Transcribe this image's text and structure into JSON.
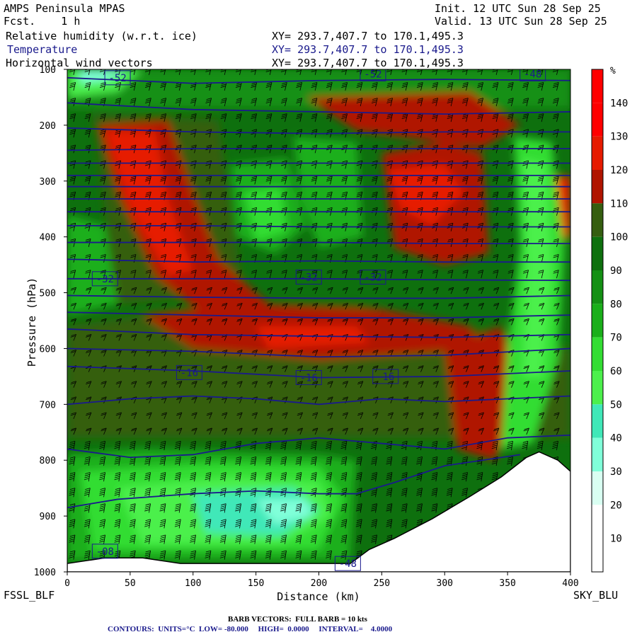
{
  "header": {
    "model": "AMPS Peninsula MPAS",
    "fcst": "Fcst.    1 h",
    "init": "Init. 12 UTC Sun 28 Sep 25",
    "valid": "Valid. 13 UTC Sun 28 Sep 25",
    "fields": [
      {
        "name": "Relative humidity (w.r.t. ice)",
        "xy": "XY= 293.7,407.7 to 170.1,495.3"
      },
      {
        "name": "Temperature",
        "xy": "XY= 293.7,407.7 to 170.1,495.3"
      },
      {
        "name": "Horizontal wind vectors",
        "xy": "XY= 293.7,407.7 to 170.1,495.3"
      }
    ]
  },
  "footer": {
    "left_station": "FSSL_BLF",
    "right_station": "SKY_BLU",
    "barb_note": "BARB VECTORS:  FULL BARB = 10 kts",
    "contour_note": "CONTOURS:  UNITS=°C  LOW= -80.000     HIGH=  0.0000     INTERVAL=    4.0000"
  },
  "colors": {
    "rh_10": "#ffffff",
    "rh_20": "#ffffff",
    "rh_30": "#d9fff2",
    "rh_40": "#80ffd9",
    "rh_50": "#40e8b8",
    "rh_60": "#4cf04c",
    "rh_70": "#33dd33",
    "rh_80": "#1aaf1a",
    "rh_90": "#149014",
    "rh_100": "#0e700e",
    "rh_110": "#355e10",
    "rh_120": "#b01400",
    "rh_130": "#e61a00",
    "rh_140": "#ff0000",
    "temperature_contour": "#1a1a8c",
    "terrain": "#ffffff"
  },
  "chart_data": {
    "type": "cross-section",
    "xlabel": "Distance (km)",
    "ylabel": "Pressure (hPa)",
    "xlim": [
      0,
      400
    ],
    "ylim": [
      1000,
      100
    ],
    "x_ticks": [
      0,
      50,
      100,
      150,
      200,
      250,
      300,
      350,
      400
    ],
    "y_ticks": [
      100,
      200,
      300,
      400,
      500,
      600,
      700,
      800,
      900,
      1000
    ],
    "colorbar": {
      "unit": "%",
      "ticks": [
        10,
        20,
        30,
        40,
        50,
        60,
        70,
        80,
        90,
        100,
        110,
        120,
        130,
        140
      ],
      "color_keys": [
        "rh_10",
        "rh_20",
        "rh_30",
        "rh_40",
        "rh_50",
        "rh_60",
        "rh_70",
        "rh_80",
        "rh_90",
        "rh_100",
        "rh_110",
        "rh_120",
        "rh_130",
        "rh_140"
      ]
    },
    "temperature_labels": [
      {
        "text": "-32",
        "x": 30,
        "p": 475
      },
      {
        "text": "-32",
        "x": 192,
        "p": 472
      },
      {
        "text": "-32",
        "x": 243,
        "p": 472
      },
      {
        "text": "-16",
        "x": 97,
        "p": 643
      },
      {
        "text": "-16",
        "x": 192,
        "p": 652
      },
      {
        "text": "-16",
        "x": 253,
        "p": 650
      },
      {
        "text": "-08",
        "x": 30,
        "p": 963
      },
      {
        "text": "-48",
        "x": 223,
        "p": 985
      },
      {
        "text": "-52",
        "x": 243,
        "p": 108
      },
      {
        "text": "-48",
        "x": 370,
        "p": 108
      },
      {
        "text": "-52",
        "x": 40,
        "p": 115
      }
    ],
    "terrain_profile": [
      {
        "x": 0,
        "p": 985
      },
      {
        "x": 30,
        "p": 975
      },
      {
        "x": 60,
        "p": 975
      },
      {
        "x": 90,
        "p": 985
      },
      {
        "x": 120,
        "p": 985
      },
      {
        "x": 160,
        "p": 985
      },
      {
        "x": 200,
        "p": 985
      },
      {
        "x": 225,
        "p": 985
      },
      {
        "x": 240,
        "p": 960
      },
      {
        "x": 260,
        "p": 940
      },
      {
        "x": 290,
        "p": 905
      },
      {
        "x": 320,
        "p": 865
      },
      {
        "x": 345,
        "p": 830
      },
      {
        "x": 365,
        "p": 795
      },
      {
        "x": 375,
        "p": 785
      },
      {
        "x": 390,
        "p": 800
      },
      {
        "x": 400,
        "p": 820
      }
    ],
    "temperature_isotherms": [
      {
        "pts": [
          [
            0,
            115
          ],
          [
            100,
            125
          ],
          [
            200,
            120
          ],
          [
            300,
            118
          ],
          [
            400,
            120
          ]
        ]
      },
      {
        "pts": [
          [
            0,
            160
          ],
          [
            100,
            172
          ],
          [
            200,
            176
          ],
          [
            300,
            180
          ],
          [
            400,
            176
          ]
        ]
      },
      {
        "pts": [
          [
            0,
            205
          ],
          [
            100,
            212
          ],
          [
            200,
            215
          ],
          [
            300,
            212
          ],
          [
            400,
            212
          ]
        ]
      },
      {
        "pts": [
          [
            0,
            245
          ],
          [
            100,
            242
          ],
          [
            200,
            242
          ],
          [
            300,
            242
          ],
          [
            400,
            242
          ]
        ]
      },
      {
        "pts": [
          [
            0,
            268
          ],
          [
            100,
            268
          ],
          [
            200,
            268
          ],
          [
            300,
            268
          ],
          [
            400,
            268
          ]
        ]
      },
      {
        "pts": [
          [
            0,
            290
          ],
          [
            100,
            290
          ],
          [
            200,
            290
          ],
          [
            300,
            290
          ],
          [
            400,
            290
          ]
        ]
      },
      {
        "pts": [
          [
            0,
            310
          ],
          [
            100,
            310
          ],
          [
            200,
            310
          ],
          [
            300,
            310
          ],
          [
            400,
            310
          ]
        ]
      },
      {
        "pts": [
          [
            0,
            332
          ],
          [
            100,
            332
          ],
          [
            200,
            332
          ],
          [
            300,
            332
          ],
          [
            400,
            332
          ]
        ]
      },
      {
        "pts": [
          [
            0,
            355
          ],
          [
            100,
            355
          ],
          [
            200,
            355
          ],
          [
            300,
            355
          ],
          [
            400,
            355
          ]
        ]
      },
      {
        "pts": [
          [
            0,
            380
          ],
          [
            100,
            380
          ],
          [
            200,
            382
          ],
          [
            300,
            382
          ],
          [
            400,
            382
          ]
        ]
      },
      {
        "pts": [
          [
            0,
            410
          ],
          [
            100,
            410
          ],
          [
            200,
            410
          ],
          [
            300,
            412
          ],
          [
            400,
            412
          ]
        ]
      },
      {
        "pts": [
          [
            0,
            440
          ],
          [
            100,
            445
          ],
          [
            200,
            443
          ],
          [
            300,
            445
          ],
          [
            400,
            445
          ]
        ]
      },
      {
        "pts": [
          [
            0,
            475
          ],
          [
            100,
            475
          ],
          [
            200,
            475
          ],
          [
            300,
            477
          ],
          [
            400,
            478
          ]
        ]
      },
      {
        "pts": [
          [
            0,
            505
          ],
          [
            100,
            508
          ],
          [
            200,
            510
          ],
          [
            300,
            510
          ],
          [
            400,
            505
          ]
        ]
      },
      {
        "pts": [
          [
            0,
            535
          ],
          [
            100,
            540
          ],
          [
            200,
            545
          ],
          [
            300,
            545
          ],
          [
            400,
            540
          ]
        ]
      },
      {
        "pts": [
          [
            0,
            565
          ],
          [
            100,
            575
          ],
          [
            200,
            578
          ],
          [
            300,
            580
          ],
          [
            400,
            575
          ]
        ]
      },
      {
        "pts": [
          [
            0,
            600
          ],
          [
            100,
            605
          ],
          [
            200,
            615
          ],
          [
            300,
            612
          ],
          [
            400,
            600
          ]
        ]
      },
      {
        "pts": [
          [
            0,
            632
          ],
          [
            100,
            640
          ],
          [
            200,
            652
          ],
          [
            300,
            650
          ],
          [
            400,
            640
          ]
        ]
      },
      {
        "pts": [
          [
            0,
            700
          ],
          [
            50,
            690
          ],
          [
            100,
            685
          ],
          [
            150,
            690
          ],
          [
            200,
            700
          ],
          [
            250,
            690
          ],
          [
            300,
            695
          ],
          [
            350,
            690
          ],
          [
            400,
            685
          ]
        ]
      },
      {
        "pts": [
          [
            0,
            780
          ],
          [
            50,
            795
          ],
          [
            100,
            790
          ],
          [
            150,
            770
          ],
          [
            200,
            760
          ],
          [
            250,
            770
          ],
          [
            300,
            780
          ],
          [
            350,
            760
          ],
          [
            400,
            755
          ]
        ]
      },
      {
        "pts": [
          [
            0,
            885
          ],
          [
            40,
            870
          ],
          [
            100,
            860
          ],
          [
            150,
            855
          ],
          [
            200,
            860
          ],
          [
            230,
            860
          ],
          [
            260,
            840
          ],
          [
            300,
            810
          ],
          [
            360,
            790
          ]
        ]
      }
    ]
  }
}
